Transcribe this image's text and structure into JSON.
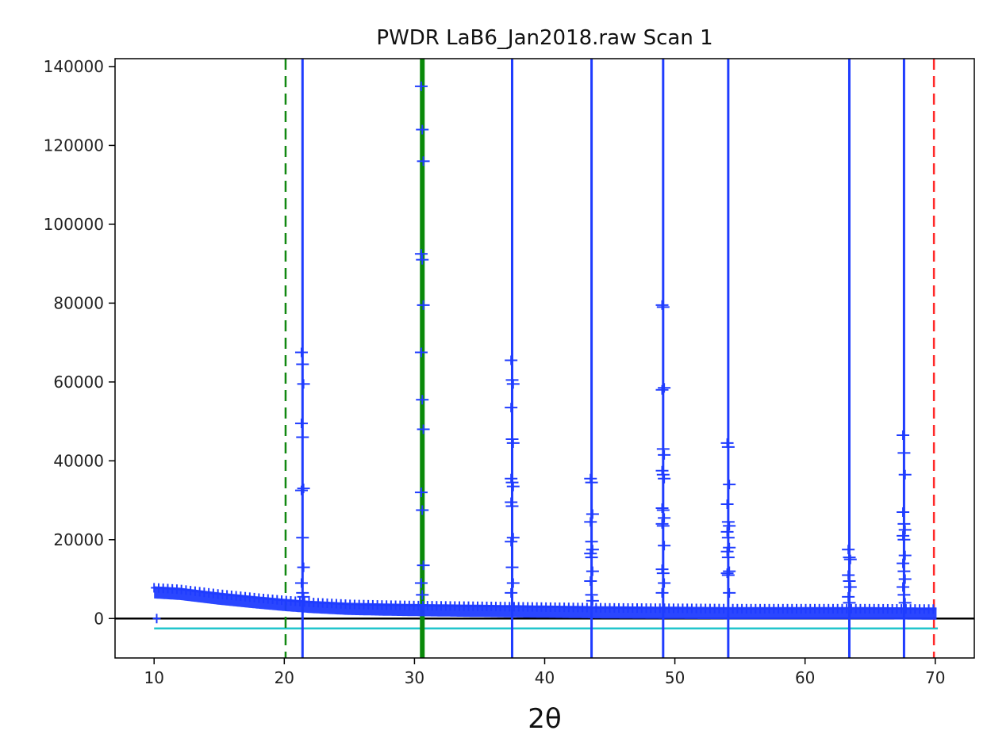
{
  "chart_data": {
    "type": "scatter",
    "title": "PWDR LaB6_Jan2018.raw Scan 1",
    "xlabel": "2θ",
    "ylabel": "",
    "xlim": [
      7,
      73
    ],
    "ylim": [
      -10000,
      142000
    ],
    "xticks": [
      10,
      20,
      30,
      40,
      50,
      60,
      70
    ],
    "yticks": [
      0,
      20000,
      40000,
      60000,
      80000,
      100000,
      120000,
      140000
    ],
    "grid": false,
    "colors": {
      "observed": "#1f3cff",
      "limit_low": "#118811",
      "limit_high": "#ff2a2a",
      "background": "#22c5cc",
      "zero_line": "#000000",
      "selected_peak": "#0a8a0a"
    },
    "limits": {
      "low": 20.1,
      "high": 69.9
    },
    "background_level": -2500,
    "zero_line": 0,
    "peak_positions": [
      21.4,
      37.5,
      43.6,
      49.1,
      54.1,
      63.4,
      67.6
    ],
    "selected_peak": 30.6,
    "series": [
      {
        "marker": "+",
        "baseline": [
          [
            10.0,
            7200
          ],
          [
            12.0,
            6800
          ],
          [
            15.0,
            5600
          ],
          [
            18.0,
            4600
          ],
          [
            20.0,
            4000
          ],
          [
            22.0,
            3500
          ],
          [
            25.0,
            3000
          ],
          [
            28.0,
            2800
          ],
          [
            30.0,
            2700
          ],
          [
            35.0,
            2500
          ],
          [
            40.0,
            2300
          ],
          [
            45.0,
            2100
          ],
          [
            50.0,
            2000
          ],
          [
            55.0,
            1900
          ],
          [
            60.0,
            1900
          ],
          [
            65.0,
            1900
          ],
          [
            70.2,
            1800
          ]
        ],
        "peaks": [
          {
            "x": 21.4,
            "values": [
              67500,
              64500,
              59500,
              49500,
              46000,
              33000,
              32500,
              20500,
              13000,
              9000,
              6500,
              5500
            ]
          },
          {
            "x": 30.6,
            "values": [
              135000,
              124000,
              116000,
              92500,
              91000,
              79500,
              67500,
              55500,
              48000,
              32000,
              27500,
              13500,
              9000,
              6000
            ]
          },
          {
            "x": 37.5,
            "values": [
              65500,
              60500,
              59500,
              53500,
              45500,
              44500,
              35500,
              34500,
              33500,
              29500,
              28500,
              20500,
              19500,
              13000,
              9000,
              6500
            ]
          },
          {
            "x": 43.6,
            "values": [
              35500,
              34500,
              26500,
              24500,
              19500,
              17500,
              16500,
              15500,
              12000,
              9500,
              6000,
              4500
            ]
          },
          {
            "x": 49.1,
            "values": [
              79500,
              79000,
              58500,
              58000,
              43000,
              41500,
              37500,
              36500,
              35500,
              28000,
              27500,
              25500,
              24000,
              23500,
              18500,
              12500,
              11500,
              9000,
              6500
            ]
          },
          {
            "x": 54.1,
            "values": [
              44500,
              43500,
              34000,
              29000,
              24500,
              23500,
              22000,
              20500,
              18000,
              17000,
              15500,
              12000,
              11500,
              11000,
              6500
            ]
          },
          {
            "x": 63.4,
            "values": [
              17500,
              15500,
              15000,
              11000,
              9500,
              8000,
              5500,
              4000
            ]
          },
          {
            "x": 67.6,
            "values": [
              46500,
              42000,
              36500,
              27000,
              24000,
              22500,
              21000,
              20000,
              16000,
              14000,
              12000,
              10000,
              8000,
              6000,
              4000
            ]
          }
        ]
      }
    ]
  }
}
